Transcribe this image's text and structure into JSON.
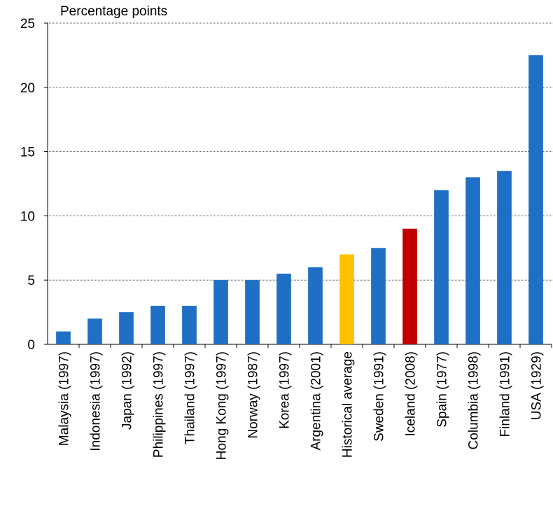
{
  "chart_data": {
    "type": "bar",
    "y_label": "Percentage points",
    "categories": [
      "Malaysia (1997)",
      "Indonesia (1997)",
      "Japan (1992)",
      "Philippines (1997)",
      "Thailand (1997)",
      "Hong Kong (1997)",
      "Norway (1987)",
      "Korea (1997)",
      "Argentina (2001)",
      "Historical average",
      "Sweden (1991)",
      "Iceland (2008)",
      "Spain (1977)",
      "Columbia (1998)",
      "Finland (1991)",
      "USA (1929)"
    ],
    "values": [
      1,
      2,
      2.5,
      3,
      3,
      5,
      5,
      5.5,
      6,
      7,
      7.5,
      9,
      12,
      13,
      13.5,
      22.5
    ],
    "colors": [
      "#1f6fc5",
      "#1f6fc5",
      "#1f6fc5",
      "#1f6fc5",
      "#1f6fc5",
      "#1f6fc5",
      "#1f6fc5",
      "#1f6fc5",
      "#1f6fc5",
      "#ffc000",
      "#1f6fc5",
      "#c00000",
      "#1f6fc5",
      "#1f6fc5",
      "#1f6fc5",
      "#1f6fc5"
    ],
    "ylim": [
      0,
      25
    ],
    "yticks": [
      0,
      5,
      10,
      15,
      20,
      25
    ],
    "grid": true
  }
}
